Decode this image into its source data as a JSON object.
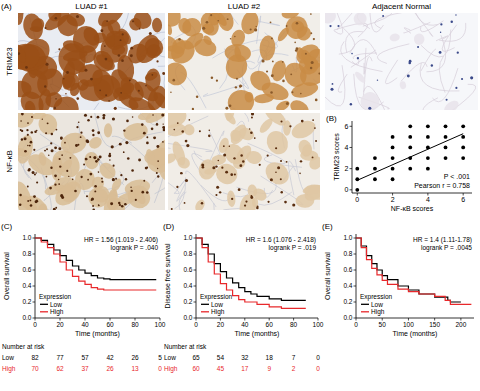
{
  "panel_a": {
    "label": "(A)",
    "columns": [
      "LUAD #1",
      "LUAD #2",
      "Adjacent Normal"
    ],
    "rows": [
      "TRIM23",
      "NF-κB"
    ]
  },
  "chart_data": [
    {
      "type": "scatter",
      "title": "(B)",
      "x_label": "NF-κB scores",
      "y_label": "TRIM23 scores",
      "xlim": [
        -0.3,
        6.5
      ],
      "ylim": [
        -0.3,
        6.5
      ],
      "xticks": [
        0,
        2,
        4,
        6
      ],
      "yticks": [
        0,
        2,
        4,
        6
      ],
      "annotations": [
        "P < .001",
        "Pearson r = 0.758"
      ],
      "series": [
        {
          "type": "scatter",
          "color": "#000000",
          "marker": "circle",
          "x": [
            0,
            0,
            0,
            1,
            1,
            1,
            2,
            2,
            2,
            2,
            2,
            3,
            3,
            3,
            3,
            3,
            4,
            4,
            4,
            4,
            4,
            5,
            5,
            5,
            5,
            6,
            6,
            6,
            6
          ],
          "values": [
            0,
            1,
            2,
            1,
            2,
            3,
            1,
            2,
            3,
            4,
            5,
            2,
            3,
            4,
            5,
            6,
            2,
            3,
            4,
            5,
            6,
            3,
            4,
            5,
            6,
            3,
            4,
            5,
            6
          ]
        },
        {
          "type": "line",
          "color": "#000000",
          "line_style": "solid",
          "x": [
            0,
            6
          ],
          "values": [
            0.9,
            5.3
          ]
        }
      ]
    },
    {
      "type": "line",
      "title": "(C)",
      "x_label": "Time (months)",
      "y_label": "Overall survival",
      "xlim": [
        0,
        100
      ],
      "ylim": [
        0,
        1.05
      ],
      "xticks": [
        0,
        20,
        40,
        60,
        80,
        100
      ],
      "yticks": [
        {
          "value": 0,
          "label": "0.0"
        },
        0.2,
        0.4,
        0.6,
        0.8,
        {
          "value": 1,
          "label": "1.0"
        }
      ],
      "legend": "lower left",
      "legend_title": "Expression",
      "annotations": [
        "HR = 1.56 (1.019 - 2.406)",
        "logrank P = .040"
      ],
      "series": [
        {
          "name": "Low",
          "color": "#000000",
          "line_style": "step",
          "x": [
            0,
            5,
            10,
            15,
            20,
            25,
            30,
            35,
            40,
            45,
            50,
            55,
            60,
            97
          ],
          "values": [
            1,
            0.97,
            0.92,
            0.85,
            0.78,
            0.72,
            0.65,
            0.6,
            0.56,
            0.53,
            0.5,
            0.49,
            0.48,
            0.48
          ]
        },
        {
          "name": "High",
          "color": "#e8282b",
          "line_style": "step",
          "x": [
            0,
            5,
            10,
            15,
            20,
            25,
            30,
            35,
            40,
            45,
            50,
            55,
            97
          ],
          "values": [
            1,
            0.95,
            0.88,
            0.8,
            0.7,
            0.6,
            0.52,
            0.46,
            0.42,
            0.38,
            0.36,
            0.35,
            0.35
          ]
        }
      ],
      "risk_table": {
        "label": "Number at risk",
        "times": [
          0,
          20,
          40,
          60,
          80,
          100
        ],
        "rows": [
          {
            "name": "Low",
            "color": "#000000",
            "values": [
              82,
              77,
              57,
              42,
              26,
              5
            ]
          },
          {
            "name": "High",
            "color": "#e8282b",
            "values": [
              70,
              62,
              37,
              26,
              13,
              0
            ]
          }
        ]
      }
    },
    {
      "type": "line",
      "title": "(D)",
      "x_label": "Time (months)",
      "y_label": "Disease free survival",
      "xlim": [
        0,
        100
      ],
      "ylim": [
        0,
        1.05
      ],
      "xticks": [
        0,
        20,
        40,
        60,
        80,
        100
      ],
      "yticks": [
        {
          "value": 0,
          "label": "0.0"
        },
        0.2,
        0.4,
        0.6,
        0.8,
        {
          "value": 1,
          "label": "1.0"
        }
      ],
      "legend": "lower left",
      "legend_title": "Expression",
      "annotations": [
        "HR = 1.6 (1.076 - 2.418)",
        "logrank P = .019"
      ],
      "series": [
        {
          "name": "Low",
          "color": "#000000",
          "line_style": "step",
          "x": [
            0,
            5,
            10,
            15,
            20,
            25,
            30,
            35,
            40,
            45,
            50,
            60,
            70,
            90
          ],
          "values": [
            1,
            0.92,
            0.8,
            0.68,
            0.58,
            0.5,
            0.44,
            0.38,
            0.33,
            0.3,
            0.27,
            0.24,
            0.22,
            0.22
          ]
        },
        {
          "name": "High",
          "color": "#e8282b",
          "line_style": "step",
          "x": [
            0,
            5,
            10,
            15,
            20,
            25,
            30,
            35,
            40,
            50,
            60,
            70,
            90
          ],
          "values": [
            1,
            0.88,
            0.7,
            0.55,
            0.43,
            0.35,
            0.28,
            0.23,
            0.2,
            0.17,
            0.14,
            0.12,
            0.12
          ]
        }
      ],
      "risk_table": {
        "label": "Number at risk",
        "times": [
          0,
          20,
          40,
          60,
          80,
          100
        ],
        "rows": [
          {
            "name": "Low",
            "color": "#000000",
            "values": [
              65,
              54,
              32,
              18,
              7,
              0
            ]
          },
          {
            "name": "High",
            "color": "#e8282b",
            "values": [
              60,
              45,
              17,
              9,
              2,
              0
            ]
          }
        ]
      }
    },
    {
      "type": "line",
      "title": "(E)",
      "x_label": "Time (months)",
      "y_label": "Overall survival",
      "xlim": [
        0,
        225
      ],
      "ylim": [
        0,
        1.05
      ],
      "xticks": [
        0,
        50,
        100,
        150,
        200
      ],
      "yticks": [
        {
          "value": 0,
          "label": "0.0"
        },
        0.2,
        0.4,
        0.6,
        0.8,
        {
          "value": 1,
          "label": "1.0"
        }
      ],
      "legend": "lower left",
      "legend_title": "Expression",
      "annotations": [
        "HR = 1.4 (1.11-1.78)",
        "logrank P = .0045"
      ],
      "series": [
        {
          "name": "Low",
          "color": "#000000",
          "line_style": "step",
          "x": [
            0,
            10,
            20,
            30,
            40,
            50,
            60,
            80,
            100,
            120,
            150,
            175,
            180,
            200
          ],
          "values": [
            1,
            0.9,
            0.78,
            0.68,
            0.6,
            0.53,
            0.48,
            0.4,
            0.35,
            0.3,
            0.26,
            0.22,
            0.2,
            0.2
          ]
        },
        {
          "name": "High",
          "color": "#e8282b",
          "line_style": "step",
          "x": [
            0,
            10,
            20,
            30,
            40,
            50,
            60,
            80,
            100,
            120,
            150,
            170,
            180,
            220
          ],
          "values": [
            1,
            0.88,
            0.73,
            0.62,
            0.54,
            0.47,
            0.42,
            0.36,
            0.33,
            0.3,
            0.27,
            0.22,
            0.17,
            0.17
          ]
        }
      ]
    }
  ]
}
